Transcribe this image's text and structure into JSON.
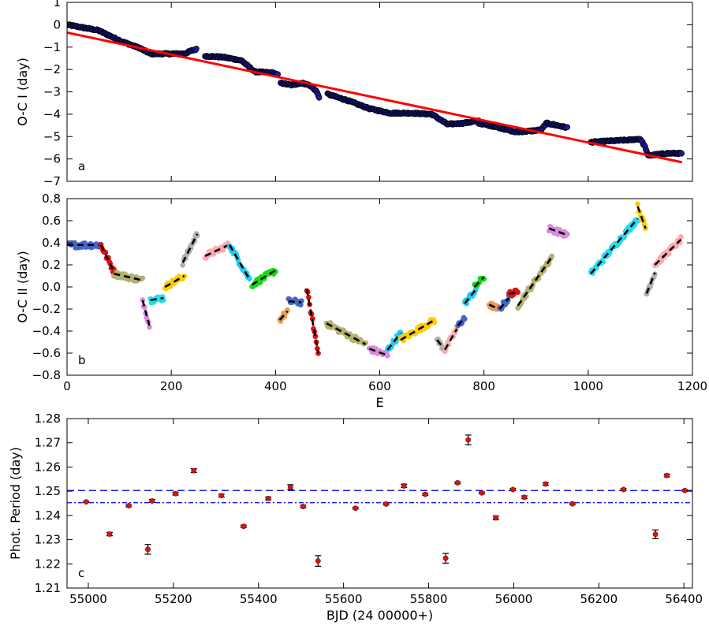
{
  "chart_data": [
    {
      "panel_label": "a",
      "type": "scatter",
      "xlabel": "",
      "ylabel": "O-C I (day)",
      "xlim": [
        0,
        1200
      ],
      "ylim": [
        -7,
        1
      ],
      "xticks": [
        0,
        200,
        400,
        600,
        800,
        1000,
        1200
      ],
      "yticks": [
        -7,
        -6,
        -5,
        -4,
        -3,
        -2,
        -1,
        0,
        1
      ],
      "ytick_labels": [
        "−7",
        "−6",
        "−5",
        "−4",
        "−3",
        "−2",
        "−1",
        "0",
        "1"
      ],
      "point_color": "#1a1aa0",
      "line_color": "#ff0000",
      "fit_line": {
        "x": [
          0,
          1180
        ],
        "y": [
          -0.35,
          -6.15
        ]
      },
      "segments": [
        {
          "x": [
            0,
            60,
            105,
            140,
            160,
            200,
            225,
            240,
            248
          ],
          "y": [
            0.0,
            -0.25,
            -0.75,
            -1.05,
            -1.3,
            -1.3,
            -1.3,
            -1.15,
            -1.1
          ]
        },
        {
          "x": [
            265,
            300,
            335,
            360,
            395,
            405
          ],
          "y": [
            -1.4,
            -1.45,
            -1.6,
            -2.1,
            -2.15,
            -2.25
          ]
        },
        {
          "x": [
            410,
            430,
            450,
            465,
            478,
            485
          ],
          "y": [
            -2.6,
            -2.7,
            -2.6,
            -2.7,
            -2.95,
            -3.3
          ]
        },
        {
          "x": [
            500,
            540,
            580,
            620,
            660,
            700,
            730,
            760,
            790
          ],
          "y": [
            -3.1,
            -3.4,
            -3.75,
            -3.95,
            -3.95,
            -4.0,
            -4.45,
            -4.4,
            -4.3
          ]
        },
        {
          "x": [
            790,
            830,
            860,
            890,
            910,
            920,
            960
          ],
          "y": [
            -4.4,
            -4.6,
            -4.8,
            -4.75,
            -4.7,
            -4.4,
            -4.6
          ]
        },
        {
          "x": [
            1005,
            1040,
            1080,
            1100,
            1110,
            1115
          ],
          "y": [
            -5.25,
            -5.2,
            -5.15,
            -5.1,
            -5.5,
            -5.9
          ]
        },
        {
          "x": [
            1115,
            1150,
            1180
          ],
          "y": [
            -5.85,
            -5.75,
            -5.75
          ]
        }
      ]
    },
    {
      "panel_label": "b",
      "type": "scatter",
      "xlabel": "E",
      "ylabel": "O-C II (day)",
      "xlim": [
        0,
        1200
      ],
      "ylim": [
        -0.8,
        0.8
      ],
      "xticks": [
        0,
        200,
        400,
        600,
        800,
        1000,
        1200
      ],
      "yticks": [
        -0.8,
        -0.6,
        -0.4,
        -0.2,
        0.0,
        0.2,
        0.4,
        0.6,
        0.8
      ],
      "ytick_labels": [
        "−0.8",
        "−0.6",
        "−0.4",
        "−0.2",
        "0.0",
        "0.2",
        "0.4",
        "0.6",
        "0.8"
      ],
      "fit_color": "#000000",
      "segments": [
        {
          "color": "#4466cc",
          "x": [
            0,
            65
          ],
          "y": [
            0.38,
            0.38
          ]
        },
        {
          "color": "#dd1111",
          "x": [
            65,
            90
          ],
          "y": [
            0.38,
            0.14
          ]
        },
        {
          "color": "#b5b070",
          "x": [
            90,
            145
          ],
          "y": [
            0.12,
            0.06
          ]
        },
        {
          "color": "#dd88dd",
          "x": [
            145,
            158
          ],
          "y": [
            -0.12,
            -0.35
          ]
        },
        {
          "color": "#22ddee",
          "x": [
            160,
            185
          ],
          "y": [
            -0.12,
            -0.1
          ]
        },
        {
          "color": "#ffcc00",
          "x": [
            188,
            225
          ],
          "y": [
            0.0,
            0.1
          ]
        },
        {
          "color": "#b0b0b0",
          "x": [
            222,
            250
          ],
          "y": [
            0.22,
            0.48
          ]
        },
        {
          "color": "#ffaab0",
          "x": [
            265,
            310
          ],
          "y": [
            0.28,
            0.38
          ]
        },
        {
          "color": "#22ccee",
          "x": [
            312,
            350
          ],
          "y": [
            0.38,
            0.07
          ]
        },
        {
          "color": "#11dd11",
          "x": [
            355,
            400
          ],
          "y": [
            0.02,
            0.15
          ]
        },
        {
          "color": "#ee9955",
          "x": [
            408,
            423
          ],
          "y": [
            -0.3,
            -0.22
          ]
        },
        {
          "color": "#4466cc",
          "x": [
            425,
            450
          ],
          "y": [
            -0.13,
            -0.14
          ]
        },
        {
          "color": "#dd1111",
          "x": [
            460,
            482
          ],
          "y": [
            -0.02,
            -0.6
          ]
        },
        {
          "color": "#b5b070",
          "x": [
            498,
            573
          ],
          "y": [
            -0.33,
            -0.52
          ]
        },
        {
          "color": "#dd88dd",
          "x": [
            580,
            615
          ],
          "y": [
            -0.56,
            -0.62
          ]
        },
        {
          "color": "#22ccee",
          "x": [
            615,
            640
          ],
          "y": [
            -0.57,
            -0.42
          ]
        },
        {
          "color": "#ffcc00",
          "x": [
            640,
            705
          ],
          "y": [
            -0.48,
            -0.3
          ]
        },
        {
          "color": "#b0b0b0",
          "x": [
            710,
            725
          ],
          "y": [
            -0.48,
            -0.57
          ]
        },
        {
          "color": "#ffaab0",
          "x": [
            725,
            748
          ],
          "y": [
            -0.57,
            -0.38
          ]
        },
        {
          "color": "#4466cc",
          "x": [
            750,
            763
          ],
          "y": [
            -0.35,
            -0.28
          ]
        },
        {
          "color": "#22ccee",
          "x": [
            763,
            785
          ],
          "y": [
            -0.15,
            -0.02
          ]
        },
        {
          "color": "#11dd11",
          "x": [
            782,
            800
          ],
          "y": [
            0.0,
            0.09
          ]
        },
        {
          "color": "#ee9955",
          "x": [
            810,
            828
          ],
          "y": [
            -0.16,
            -0.2
          ]
        },
        {
          "color": "#4466cc",
          "x": [
            830,
            848
          ],
          "y": [
            -0.2,
            -0.1
          ]
        },
        {
          "color": "#dd1111",
          "x": [
            848,
            865
          ],
          "y": [
            -0.06,
            -0.05
          ]
        },
        {
          "color": "#b5b070",
          "x": [
            865,
            930
          ],
          "y": [
            -0.17,
            0.27
          ]
        },
        {
          "color": "#dd88dd",
          "x": [
            925,
            960
          ],
          "y": [
            0.53,
            0.47
          ]
        },
        {
          "color": "#22ddee",
          "x": [
            1005,
            1095
          ],
          "y": [
            0.12,
            0.62
          ]
        },
        {
          "color": "#ffcc00",
          "x": [
            1095,
            1110
          ],
          "y": [
            0.73,
            0.53
          ]
        },
        {
          "color": "#b0b0b0",
          "x": [
            1112,
            1128
          ],
          "y": [
            -0.06,
            0.13
          ]
        },
        {
          "color": "#ffaab0",
          "x": [
            1128,
            1178
          ],
          "y": [
            0.2,
            0.43
          ]
        }
      ]
    },
    {
      "panel_label": "c",
      "type": "scatter",
      "xlabel": "BJD  (24 00000+)",
      "ylabel": "Phot. Period (day)",
      "xlim": [
        54950,
        56420
      ],
      "ylim": [
        1.21,
        1.28
      ],
      "xticks": [
        55000,
        55200,
        55400,
        55600,
        55800,
        56000,
        56200,
        56400
      ],
      "yticks": [
        1.21,
        1.22,
        1.23,
        1.24,
        1.25,
        1.26,
        1.27,
        1.28
      ],
      "point_color": "#dd1111",
      "errorbar_color": "#000000",
      "line_color": "#1a1aee",
      "hlines": [
        {
          "y": 1.2503,
          "style": "dashed"
        },
        {
          "y": 1.2453,
          "style": "dashdot"
        }
      ],
      "x": [
        54995,
        55050,
        55095,
        55140,
        55150,
        55205,
        55248,
        55313,
        55365,
        55423,
        55475,
        55505,
        55540,
        55628,
        55700,
        55742,
        55792,
        55840,
        55868,
        55893,
        55925,
        55958,
        55998,
        56025,
        56075,
        56138,
        56258,
        56333,
        56360,
        56402
      ],
      "y": [
        1.2456,
        1.2323,
        1.244,
        1.226,
        1.246,
        1.249,
        1.2585,
        1.2482,
        1.2355,
        1.247,
        1.2517,
        1.2437,
        1.2212,
        1.243,
        1.2447,
        1.2522,
        1.2487,
        1.2223,
        1.2535,
        1.2712,
        1.2493,
        1.239,
        1.2507,
        1.2475,
        1.253,
        1.2448,
        1.2507,
        1.2322,
        1.2565,
        1.2503
      ],
      "err": [
        0.0003,
        0.0007,
        0.0004,
        0.002,
        0.0006,
        0.0006,
        0.0008,
        0.0006,
        0.0005,
        0.0006,
        0.001,
        0.0005,
        0.0022,
        0.0004,
        0.0004,
        0.0007,
        0.0004,
        0.002,
        0.0004,
        0.002,
        0.0004,
        0.0008,
        0.0004,
        0.0006,
        0.0006,
        0.0004,
        0.0004,
        0.0018,
        0.0006,
        0.0003
      ]
    }
  ]
}
